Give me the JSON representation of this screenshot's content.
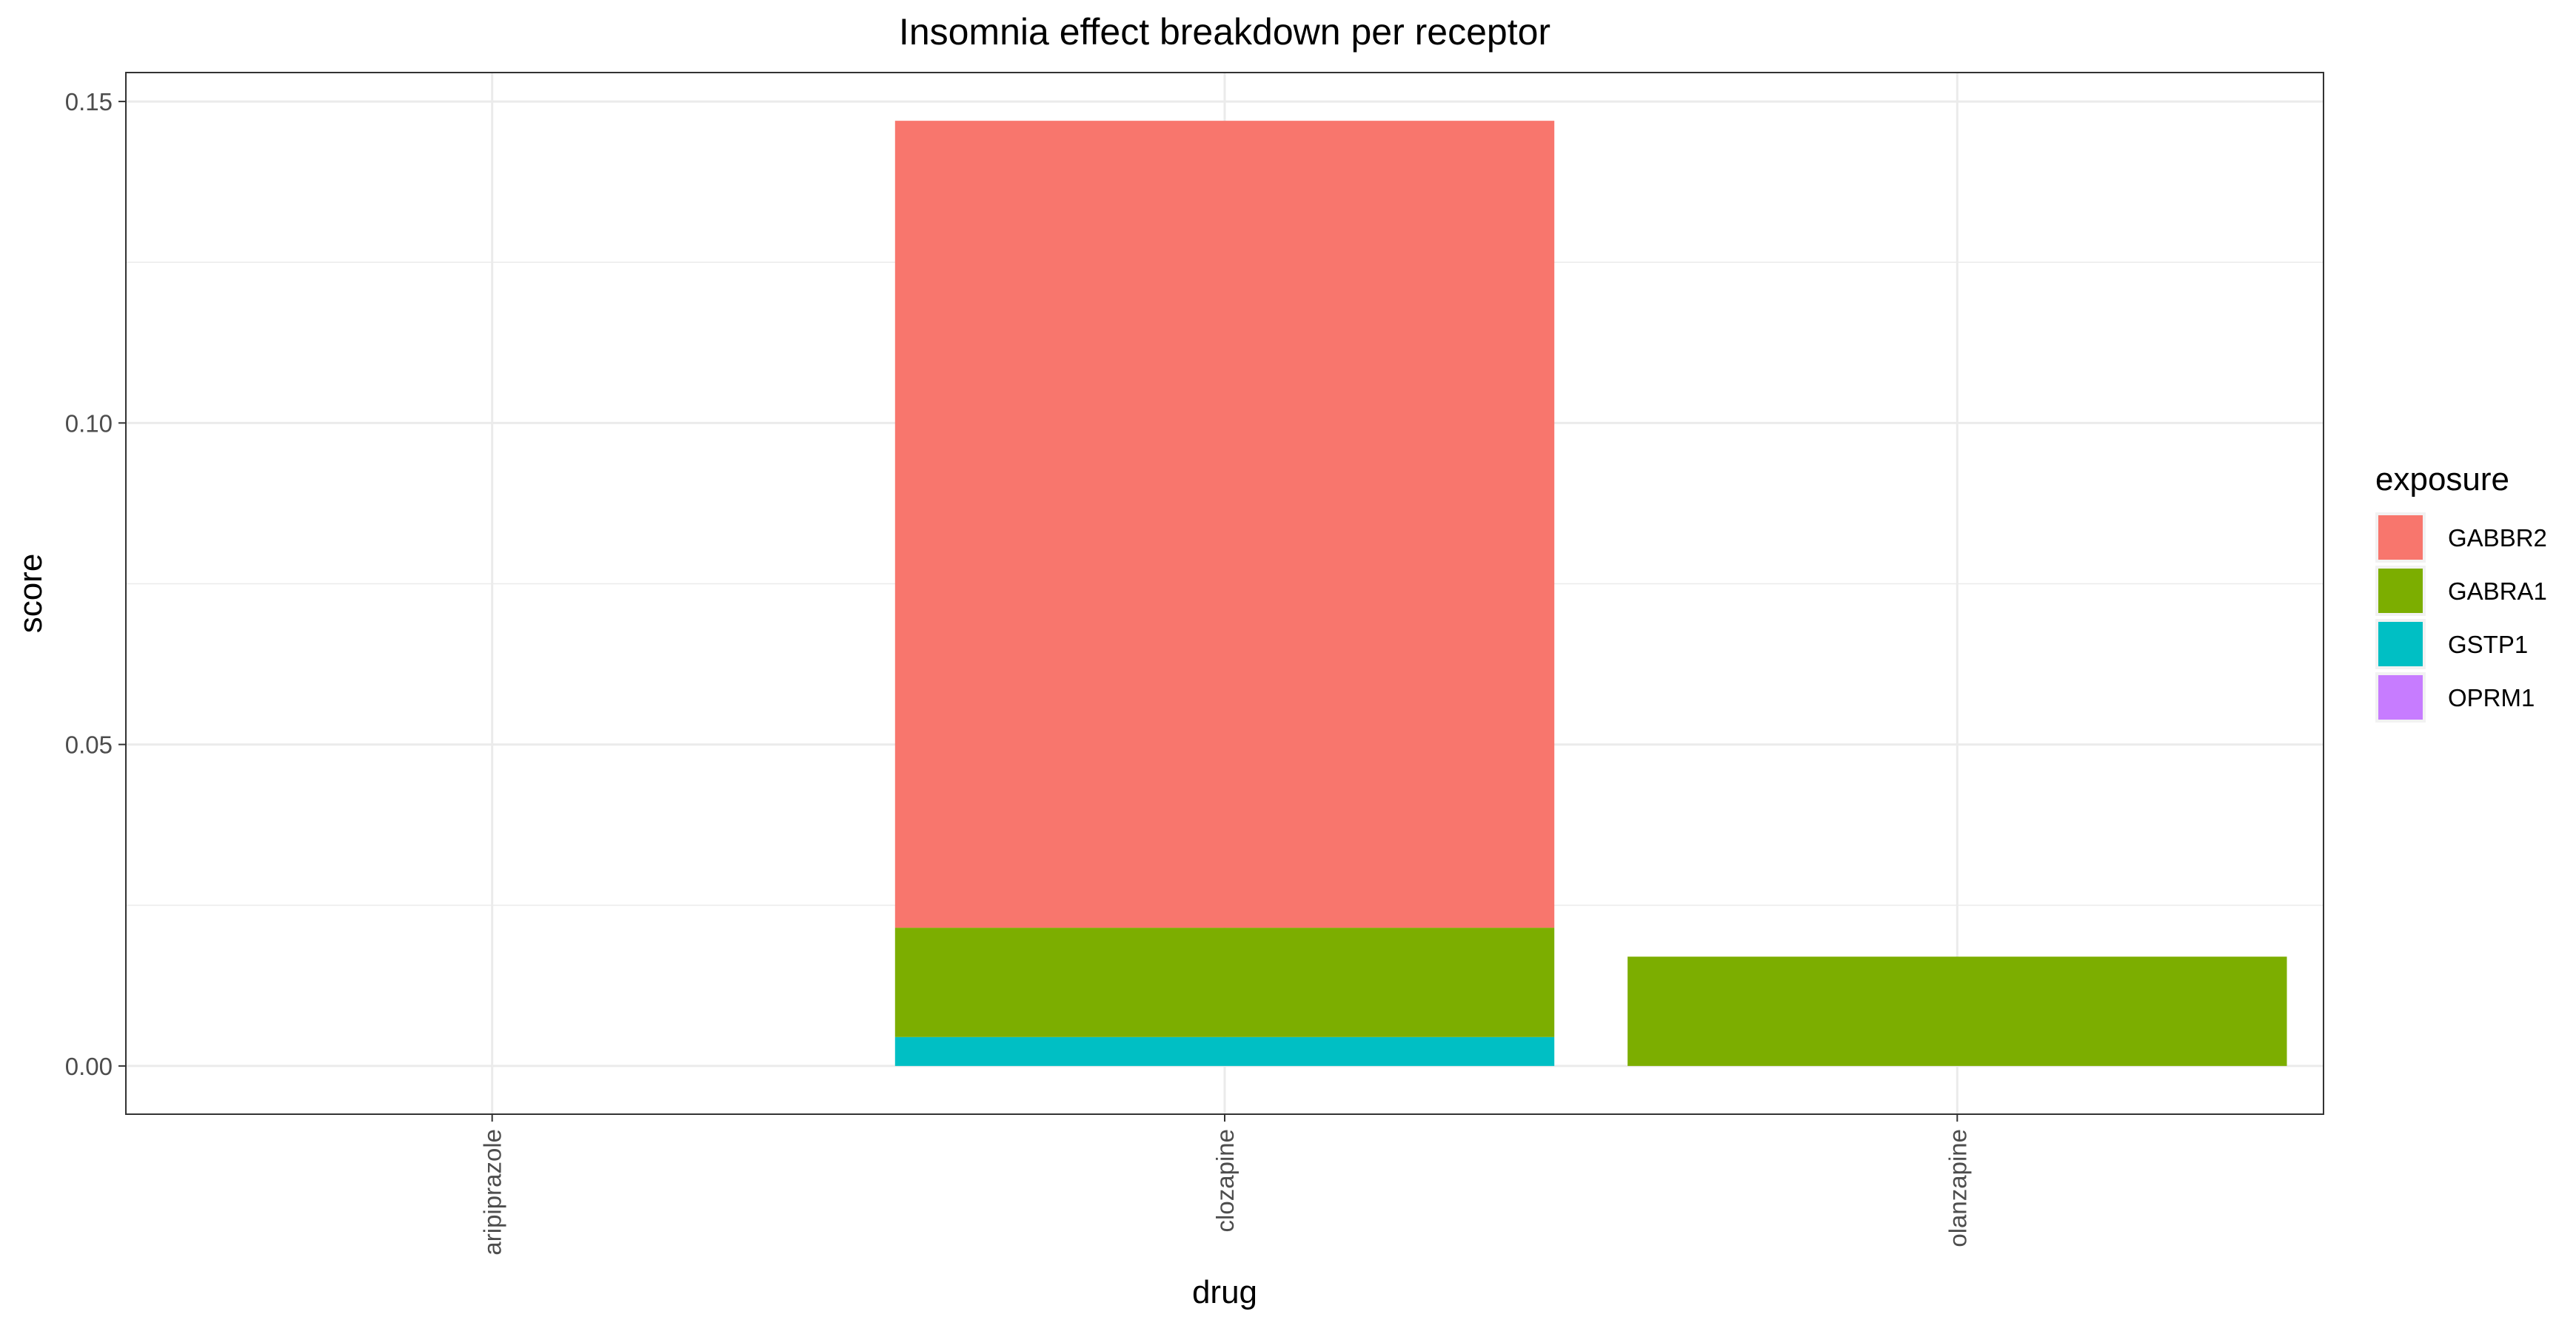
{
  "chart_data": {
    "type": "bar",
    "stacked": true,
    "title": "Insomnia effect breakdown per receptor",
    "xlabel": "drug",
    "ylabel": "score",
    "categories": [
      "aripiprazole",
      "clozapine",
      "olanzapine"
    ],
    "ylim": [
      -0.0075,
      0.1545
    ],
    "yticks": [
      0.0,
      0.05,
      0.1,
      0.15
    ],
    "ytick_labels": [
      "0.00",
      "0.05",
      "0.10",
      "0.15"
    ],
    "grid": true,
    "legend_position": "right",
    "legend_title": "exposure",
    "series": [
      {
        "name": "GSTP1",
        "color": "#00BFC4",
        "values": [
          0,
          0.0045,
          0
        ]
      },
      {
        "name": "GABRA1",
        "color": "#7CAE00",
        "values": [
          0,
          0.017,
          0.017
        ]
      },
      {
        "name": "GABBR2",
        "color": "#F8766D",
        "values": [
          0,
          0.1255,
          0
        ]
      },
      {
        "name": "OPRM1",
        "color": "#C77CFF",
        "values": [
          0,
          0,
          0
        ]
      }
    ],
    "legend_order": [
      "GABBR2",
      "GABRA1",
      "GSTP1",
      "OPRM1"
    ]
  }
}
